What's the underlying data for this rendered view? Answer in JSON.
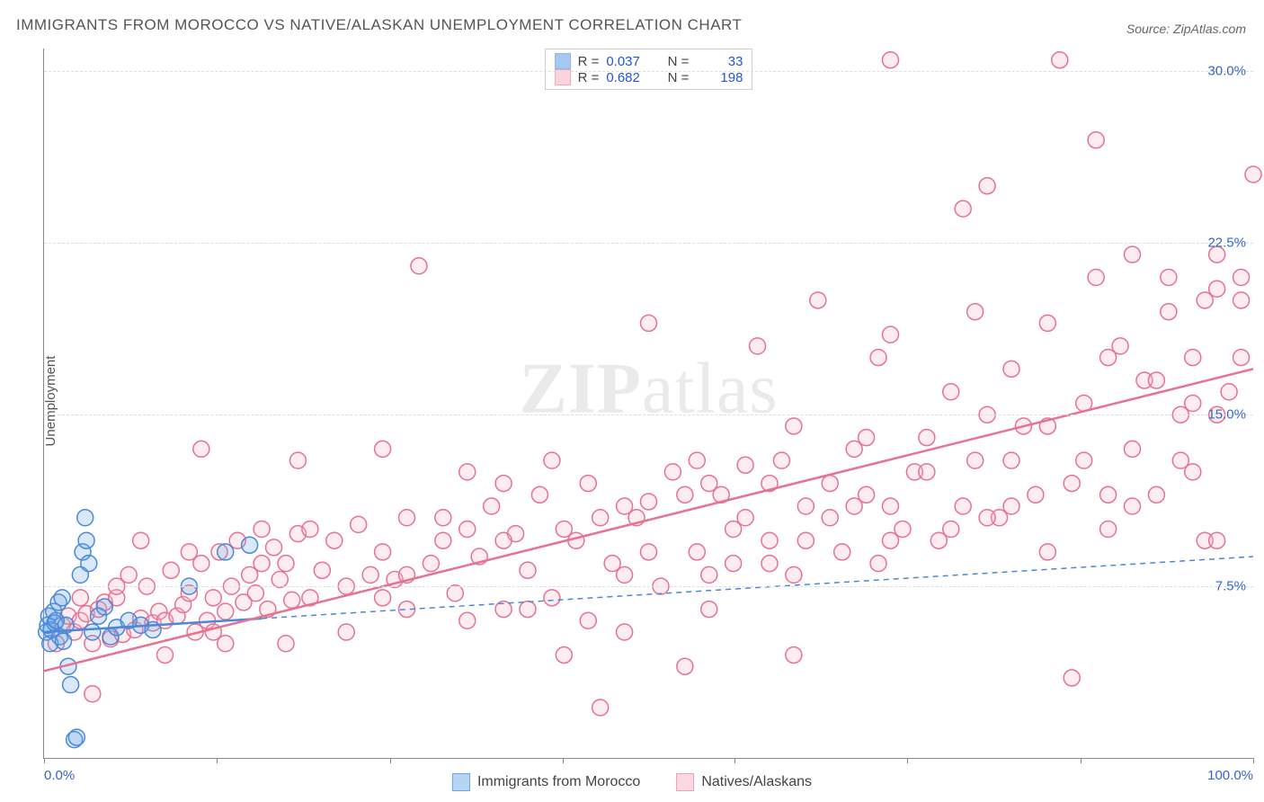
{
  "title": "IMMIGRANTS FROM MOROCCO VS NATIVE/ALASKAN UNEMPLOYMENT CORRELATION CHART",
  "source_label": "Source: ZipAtlas.com",
  "ylabel": "Unemployment",
  "watermark": {
    "bold": "ZIP",
    "rest": "atlas"
  },
  "chart": {
    "type": "scatter",
    "background_color": "#ffffff",
    "grid_color": "#dddddd",
    "axis_color": "#888888",
    "xlim": [
      0,
      100
    ],
    "ylim": [
      0,
      31
    ],
    "xticks": [
      0,
      14.3,
      28.6,
      42.9,
      57.1,
      71.4,
      85.7,
      100
    ],
    "xtick_labels_shown": {
      "0": "0.0%",
      "100": "100.0%"
    },
    "yticks": [
      7.5,
      15.0,
      22.5,
      30.0
    ],
    "ytick_labels": [
      "7.5%",
      "15.0%",
      "22.5%",
      "30.0%"
    ],
    "tick_label_color": "#3366cc",
    "marker_radius": 9,
    "marker_fill_opacity": 0.25,
    "marker_stroke_width": 1.5,
    "series": [
      {
        "name": "Immigrants from Morocco",
        "color": "#6aa8e8",
        "stroke": "#4a88d8",
        "R": "0.037",
        "N": "33",
        "trendline": {
          "x1": 0,
          "y1": 5.5,
          "x2": 100,
          "y2": 8.8,
          "dash": "6,5",
          "width": 1.5,
          "solid_until_x": 18
        },
        "points": [
          [
            0.2,
            5.5
          ],
          [
            0.3,
            5.8
          ],
          [
            0.4,
            6.2
          ],
          [
            0.5,
            5.0
          ],
          [
            0.6,
            5.6
          ],
          [
            0.8,
            6.4
          ],
          [
            0.9,
            5.9
          ],
          [
            1.0,
            6.0
          ],
          [
            1.2,
            6.8
          ],
          [
            1.3,
            5.3
          ],
          [
            1.5,
            7.0
          ],
          [
            1.6,
            5.1
          ],
          [
            1.8,
            5.8
          ],
          [
            2.0,
            4.0
          ],
          [
            2.2,
            3.2
          ],
          [
            2.5,
            0.8
          ],
          [
            2.7,
            0.9
          ],
          [
            3.0,
            8.0
          ],
          [
            3.2,
            9.0
          ],
          [
            3.4,
            10.5
          ],
          [
            3.5,
            9.5
          ],
          [
            3.7,
            8.5
          ],
          [
            4.0,
            5.5
          ],
          [
            4.5,
            6.2
          ],
          [
            5.0,
            6.6
          ],
          [
            5.5,
            5.3
          ],
          [
            6.0,
            5.7
          ],
          [
            7.0,
            6.0
          ],
          [
            8.0,
            5.8
          ],
          [
            9.0,
            5.6
          ],
          [
            12.0,
            7.5
          ],
          [
            15.0,
            9.0
          ],
          [
            17.0,
            9.3
          ]
        ]
      },
      {
        "name": "Natives/Alaskans",
        "color": "#f8b8c8",
        "stroke": "#e87090",
        "R": "0.682",
        "N": "198",
        "trendline": {
          "x1": 0,
          "y1": 3.8,
          "x2": 100,
          "y2": 17.0,
          "dash": "none",
          "width": 2.5
        },
        "points": [
          [
            1,
            5.0
          ],
          [
            1.5,
            5.8
          ],
          [
            2,
            6.2
          ],
          [
            2.5,
            5.5
          ],
          [
            3,
            6.0
          ],
          [
            3.5,
            6.3
          ],
          [
            4,
            5.0
          ],
          [
            4.5,
            6.5
          ],
          [
            5,
            6.8
          ],
          [
            5.5,
            5.2
          ],
          [
            6,
            7.0
          ],
          [
            6.5,
            5.4
          ],
          [
            7,
            8.0
          ],
          [
            7.5,
            5.6
          ],
          [
            8,
            6.1
          ],
          [
            8.5,
            7.5
          ],
          [
            9,
            5.9
          ],
          [
            9.5,
            6.4
          ],
          [
            10,
            6.0
          ],
          [
            10.5,
            8.2
          ],
          [
            11,
            6.2
          ],
          [
            11.5,
            6.7
          ],
          [
            12,
            7.2
          ],
          [
            12.5,
            5.5
          ],
          [
            13,
            8.5
          ],
          [
            13.5,
            6.0
          ],
          [
            14,
            7.0
          ],
          [
            14.5,
            9.0
          ],
          [
            15,
            6.4
          ],
          [
            15.5,
            7.5
          ],
          [
            16,
            9.5
          ],
          [
            16.5,
            6.8
          ],
          [
            17,
            8.0
          ],
          [
            17.5,
            7.2
          ],
          [
            18,
            10.0
          ],
          [
            18.5,
            6.5
          ],
          [
            19,
            9.2
          ],
          [
            19.5,
            7.8
          ],
          [
            20,
            8.5
          ],
          [
            20.5,
            6.9
          ],
          [
            21,
            9.8
          ],
          [
            22,
            7.0
          ],
          [
            23,
            8.2
          ],
          [
            24,
            9.5
          ],
          [
            25,
            7.5
          ],
          [
            26,
            10.2
          ],
          [
            27,
            8.0
          ],
          [
            28,
            9.0
          ],
          [
            29,
            7.8
          ],
          [
            30,
            10.5
          ],
          [
            31,
            21.5
          ],
          [
            32,
            8.5
          ],
          [
            33,
            9.5
          ],
          [
            34,
            7.2
          ],
          [
            35,
            10.0
          ],
          [
            36,
            8.8
          ],
          [
            37,
            11.0
          ],
          [
            38,
            6.5
          ],
          [
            39,
            9.8
          ],
          [
            40,
            8.2
          ],
          [
            41,
            11.5
          ],
          [
            42,
            7.0
          ],
          [
            43,
            10.0
          ],
          [
            44,
            9.5
          ],
          [
            45,
            12.0
          ],
          [
            46,
            2.2
          ],
          [
            47,
            8.5
          ],
          [
            48,
            5.5
          ],
          [
            49,
            10.5
          ],
          [
            50,
            11.2
          ],
          [
            51,
            7.5
          ],
          [
            52,
            12.5
          ],
          [
            53,
            4.0
          ],
          [
            54,
            9.0
          ],
          [
            55,
            8.0
          ],
          [
            56,
            11.5
          ],
          [
            57,
            10.0
          ],
          [
            58,
            12.8
          ],
          [
            59,
            18.0
          ],
          [
            60,
            9.5
          ],
          [
            61,
            13.0
          ],
          [
            62,
            8.0
          ],
          [
            63,
            11.0
          ],
          [
            64,
            20.0
          ],
          [
            65,
            10.5
          ],
          [
            66,
            9.0
          ],
          [
            67,
            13.5
          ],
          [
            68,
            11.5
          ],
          [
            69,
            17.5
          ],
          [
            70,
            30.5
          ],
          [
            71,
            10.0
          ],
          [
            72,
            12.5
          ],
          [
            73,
            14.0
          ],
          [
            74,
            9.5
          ],
          [
            75,
            16.0
          ],
          [
            76,
            11.0
          ],
          [
            77,
            13.0
          ],
          [
            78,
            25.0
          ],
          [
            79,
            10.5
          ],
          [
            80,
            17.0
          ],
          [
            81,
            14.5
          ],
          [
            82,
            11.5
          ],
          [
            83,
            19.0
          ],
          [
            84,
            30.5
          ],
          [
            85,
            12.0
          ],
          [
            86,
            15.5
          ],
          [
            87,
            27.0
          ],
          [
            88,
            10.0
          ],
          [
            89,
            18.0
          ],
          [
            90,
            13.5
          ],
          [
            91,
            16.5
          ],
          [
            92,
            11.5
          ],
          [
            93,
            21.0
          ],
          [
            94,
            15.0
          ],
          [
            95,
            17.5
          ],
          [
            96,
            9.5
          ],
          [
            97,
            20.5
          ],
          [
            98,
            16.0
          ],
          [
            99,
            21.0
          ],
          [
            100,
            25.5
          ],
          [
            13,
            13.5
          ],
          [
            21,
            13.0
          ],
          [
            28,
            13.5
          ],
          [
            35,
            6.0
          ],
          [
            42,
            13.0
          ],
          [
            48,
            11.0
          ],
          [
            55,
            12.0
          ],
          [
            62,
            4.5
          ],
          [
            69,
            8.5
          ],
          [
            76,
            24.0
          ],
          [
            83,
            9.0
          ],
          [
            90,
            22.0
          ],
          [
            96,
            20.0
          ],
          [
            15,
            5.0
          ],
          [
            25,
            5.5
          ],
          [
            35,
            12.5
          ],
          [
            45,
            6.0
          ],
          [
            55,
            6.5
          ],
          [
            65,
            12.0
          ],
          [
            75,
            10.0
          ],
          [
            85,
            3.5
          ],
          [
            95,
            12.5
          ],
          [
            50,
            19.0
          ],
          [
            60,
            12.0
          ],
          [
            70,
            18.5
          ],
          [
            80,
            11.0
          ],
          [
            88,
            17.5
          ],
          [
            92,
            16.5
          ],
          [
            97,
            22.0
          ],
          [
            99,
            20.0
          ],
          [
            4,
            2.8
          ],
          [
            8,
            9.5
          ],
          [
            14,
            5.5
          ],
          [
            22,
            10.0
          ],
          [
            30,
            6.5
          ],
          [
            38,
            12.0
          ],
          [
            46,
            10.5
          ],
          [
            54,
            13.0
          ],
          [
            62,
            14.5
          ],
          [
            70,
            11.0
          ],
          [
            78,
            15.0
          ],
          [
            86,
            13.0
          ],
          [
            94,
            13.0
          ],
          [
            10,
            4.5
          ],
          [
            20,
            5.0
          ],
          [
            30,
            8.0
          ],
          [
            40,
            6.5
          ],
          [
            50,
            9.0
          ],
          [
            60,
            8.5
          ],
          [
            70,
            9.5
          ],
          [
            80,
            13.0
          ],
          [
            90,
            11.0
          ],
          [
            95,
            15.5
          ],
          [
            97,
            15.0
          ],
          [
            99,
            17.5
          ],
          [
            88,
            11.5
          ],
          [
            78,
            10.5
          ],
          [
            68,
            14.0
          ],
          [
            58,
            10.5
          ],
          [
            48,
            8.0
          ],
          [
            38,
            9.5
          ],
          [
            28,
            7.0
          ],
          [
            18,
            8.5
          ],
          [
            12,
            9.0
          ],
          [
            6,
            7.5
          ],
          [
            3,
            7.0
          ],
          [
            33,
            10.5
          ],
          [
            43,
            4.5
          ],
          [
            53,
            11.5
          ],
          [
            63,
            9.5
          ],
          [
            73,
            12.5
          ],
          [
            83,
            14.5
          ],
          [
            93,
            19.5
          ],
          [
            97,
            9.5
          ],
          [
            87,
            21.0
          ],
          [
            77,
            19.5
          ],
          [
            67,
            11.0
          ],
          [
            57,
            8.5
          ]
        ]
      }
    ]
  },
  "bottom_legend": [
    {
      "label": "Immigrants from Morocco",
      "fill": "#b8d4f5",
      "stroke": "#6aa8e8"
    },
    {
      "label": "Natives/Alaskans",
      "fill": "#fcd8e2",
      "stroke": "#f0a0b8"
    }
  ]
}
